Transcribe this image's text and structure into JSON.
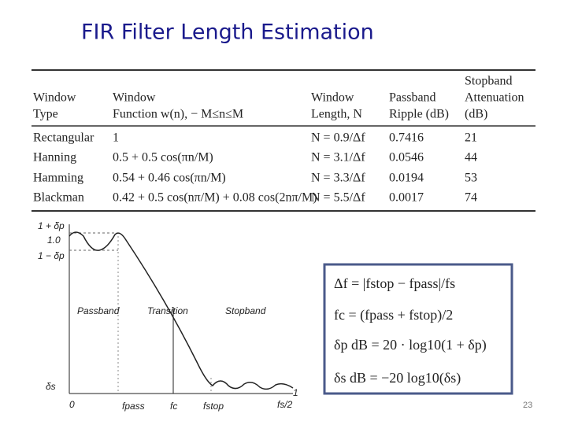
{
  "header": {
    "title": "FIR Filter Length Estimation"
  },
  "table": {
    "header": [
      [
        "Window",
        "Type"
      ],
      [
        "Window",
        "Function w(n),  − M≤n≤M"
      ],
      [
        "Window",
        "Length, N"
      ],
      [
        "Passband",
        "Ripple (dB)"
      ],
      [
        "Stopband",
        "Attenuation",
        "(dB)"
      ]
    ],
    "rows": [
      [
        "Rectangular",
        "1",
        "N = 0.9/Δf",
        "0.7416",
        "21"
      ],
      [
        "Hanning",
        "0.5 + 0.5 cos(πn/M)",
        "N = 3.1/Δf",
        "0.0546",
        "44"
      ],
      [
        "Hamming",
        "0.54 + 0.46 cos(πn/M)",
        "N = 3.3/Δf",
        "0.0194",
        "53"
      ],
      [
        "Blackman",
        "0.42 + 0.5 cos(nπ/M) + 0.08 cos(2nπ/M)",
        "N = 5.5/Δf",
        "0.0017",
        "74"
      ]
    ]
  },
  "diagram": {
    "y_labels": [
      "1 + δp",
      "1.0",
      "1 − δp",
      "δs"
    ],
    "x_labels": [
      "0",
      "fpass",
      "fc",
      "fstop",
      "fs/2"
    ],
    "right_label": "1",
    "regions": [
      "Passband",
      "Transition",
      "Stopband"
    ]
  },
  "equations": [
    "Δf = |fstop − fpass|/fs",
    "fc = (fpass + fstop)/2",
    "δp dB = 20 · log10(1 + δp)",
    "δs dB = −20 log10(δs)"
  ],
  "page_number": "23"
}
